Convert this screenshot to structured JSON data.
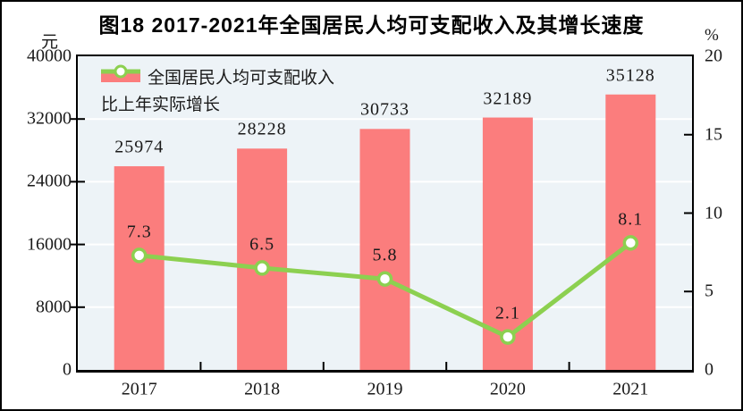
{
  "title": "图18  2017-2021年全国居民人均可支配收入及其增长速度",
  "chart_data": {
    "type": "bar+line",
    "title": "图18  2017-2021年全国居民人均可支配收入及其增长速度",
    "categories": [
      "2017",
      "2018",
      "2019",
      "2020",
      "2021"
    ],
    "series": [
      {
        "name": "全国居民人均可支配收入",
        "type": "bar",
        "axis": "left",
        "values": [
          25974,
          28228,
          30733,
          32189,
          35128
        ],
        "labels": [
          "25974",
          "28228",
          "30733",
          "32189",
          "35128"
        ],
        "color": "#FB7D7D"
      },
      {
        "name": "比上年实际增长",
        "type": "line",
        "axis": "right",
        "values": [
          7.3,
          6.5,
          5.8,
          2.1,
          8.1
        ],
        "labels": [
          "7.3",
          "6.5",
          "5.8",
          "2.1",
          "8.1"
        ],
        "color": "#8CD050",
        "marker": "circle-white-fill"
      }
    ],
    "left_axis": {
      "unit": "元",
      "min": 0,
      "max": 40000,
      "step": 8000,
      "tick_labels": [
        "0",
        "8000",
        "16000",
        "24000",
        "32000",
        "40000"
      ]
    },
    "right_axis": {
      "unit": "%",
      "min": 0,
      "max": 20,
      "step": 5,
      "tick_labels": [
        "0",
        "5",
        "10",
        "15",
        "20"
      ]
    },
    "grid": true,
    "gridline_color": "#FFFFFF",
    "plot_bg_color": "#EDF3F7",
    "legend_position": "top-left-inside"
  }
}
